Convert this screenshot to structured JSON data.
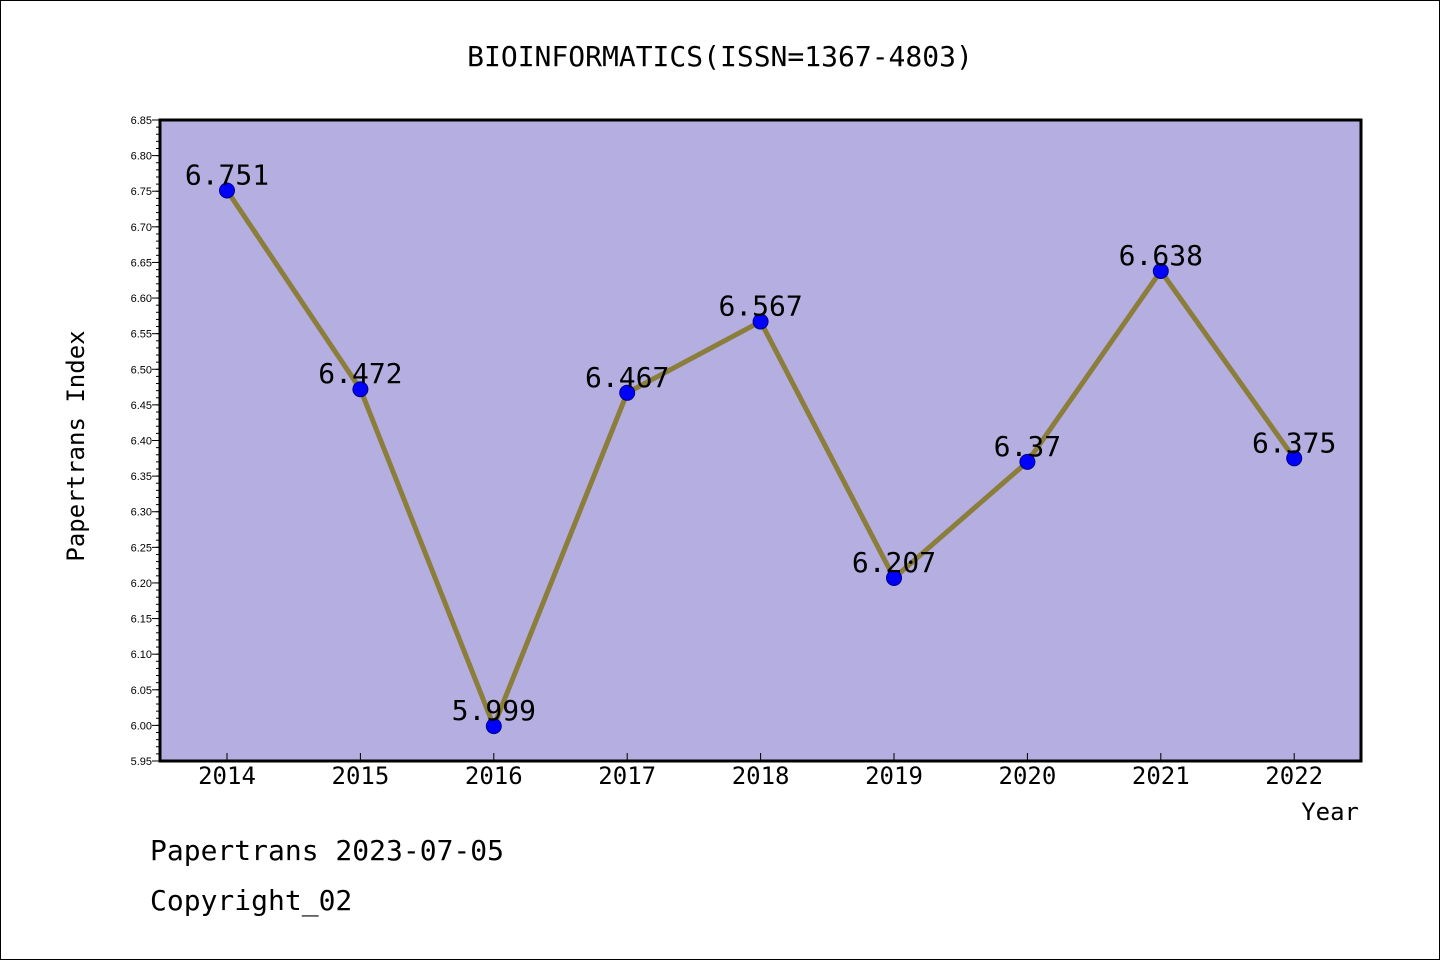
{
  "chart_data": {
    "type": "line",
    "title": "BIOINFORMATICS(ISSN=1367-4803)",
    "xlabel": "Year",
    "ylabel": "Papertrans Index",
    "categories": [
      "2014",
      "2015",
      "2016",
      "2017",
      "2018",
      "2019",
      "2020",
      "2021",
      "2022"
    ],
    "values": [
      6.751,
      6.472,
      5.999,
      6.467,
      6.567,
      6.207,
      6.37,
      6.638,
      6.375
    ],
    "data_labels": [
      "6.751",
      "6.472",
      "5.999",
      "6.467",
      "6.567",
      "6.207",
      "6.37",
      "6.638",
      "6.375"
    ],
    "ylim": [
      5.95,
      6.85
    ],
    "yticks": [
      "5.95",
      "6.00",
      "6.05",
      "6.10",
      "6.15",
      "6.20",
      "6.25",
      "6.30",
      "6.35",
      "6.40",
      "6.45",
      "6.50",
      "6.55",
      "6.60",
      "6.65",
      "6.70",
      "6.75",
      "6.80",
      "6.85"
    ],
    "grid": false,
    "colors": {
      "plot_background": "#b5aee1",
      "line": "#8b7d3a",
      "marker_fill": "#0000ff",
      "marker_edge": "#000080"
    }
  },
  "footer": {
    "date_line": "Papertrans 2023-07-05",
    "copyright_line": "Copyright_02"
  }
}
